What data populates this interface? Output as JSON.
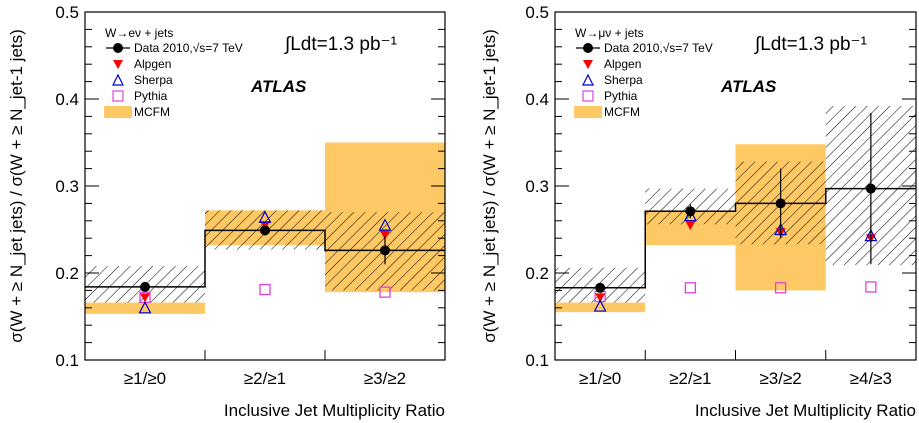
{
  "chart_data": [
    {
      "type": "bar",
      "xlabel": "Inclusive Jet Multiplicity Ratio",
      "ylabel": "σ(W + ≥ N_jet jets) / σ(W + ≥ N_jet-1 jets)",
      "ylim": [
        0.1,
        0.5
      ],
      "yticks": [
        "0.1",
        "0.2",
        "0.3",
        "0.4",
        "0.5"
      ],
      "categories": [
        "≥1/≥0",
        "≥2/≥1",
        "≥3/≥2"
      ],
      "lumi": "∫Ldt=1.3 pb⁻¹",
      "atlas": "ATLAS",
      "legend_header": "W→eν + jets",
      "legend": [
        "Data 2010,√s=7 TeV",
        "Alpgen",
        "Sherpa",
        "Pythia",
        "MCFM"
      ],
      "series": [
        {
          "name": "Data 2010,√s=7 TeV",
          "values": [
            0.184,
            0.249,
            0.226
          ],
          "err_stat": [
            0.004,
            0.006,
            0.016
          ],
          "syst_band": [
            [
              0.166,
              0.208
            ],
            [
              0.227,
              0.272
            ],
            [
              0.18,
              0.27
            ]
          ]
        },
        {
          "name": "Alpgen",
          "values": [
            0.172,
            0.255,
            0.244
          ]
        },
        {
          "name": "Sherpa",
          "values": [
            0.16,
            0.264,
            0.255
          ]
        },
        {
          "name": "Pythia",
          "values": [
            0.172,
            0.181,
            0.178
          ]
        },
        {
          "name": "MCFM",
          "bands": [
            [
              0.153,
              0.166
            ],
            [
              0.232,
              0.272
            ],
            [
              0.178,
              0.35
            ]
          ]
        }
      ],
      "colors": {
        "data": "#000000",
        "alpgen": "#ff0000",
        "sherpa": "#0000cc",
        "pythia": "#e040e0",
        "mcfm": "#fec964"
      }
    },
    {
      "type": "bar",
      "xlabel": "Inclusive Jet Multiplicity Ratio",
      "ylabel": "σ(W + ≥ N_jet jets) / σ(W + ≥ N_jet-1 jets)",
      "ylim": [
        0.1,
        0.5
      ],
      "yticks": [
        "0.1",
        "0.2",
        "0.3",
        "0.4",
        "0.5"
      ],
      "categories": [
        "≥1/≥0",
        "≥2/≥1",
        "≥3/≥2",
        "≥4/≥3"
      ],
      "lumi": "∫Ldt=1.3 pb⁻¹",
      "atlas": "ATLAS",
      "legend_header": "W→μν + jets",
      "legend": [
        "Data 2010,√s=7 TeV",
        "Alpgen",
        "Sherpa",
        "Pythia",
        "MCFM"
      ],
      "series": [
        {
          "name": "Data 2010,√s=7 TeV",
          "values": [
            0.183,
            0.271,
            0.28,
            0.297
          ],
          "err_stat": [
            0.004,
            0.008,
            0.04,
            0.087
          ],
          "syst_band": [
            [
              0.166,
              0.206
            ],
            [
              0.256,
              0.297
            ],
            [
              0.233,
              0.328
            ],
            [
              0.209,
              0.392
            ]
          ]
        },
        {
          "name": "Alpgen",
          "values": [
            0.172,
            0.255,
            0.247,
            0.24
          ]
        },
        {
          "name": "Sherpa",
          "values": [
            0.162,
            0.266,
            0.25,
            0.243
          ]
        },
        {
          "name": "Pythia",
          "values": [
            0.173,
            0.183,
            0.183,
            0.184
          ]
        },
        {
          "name": "MCFM",
          "bands": [
            [
              0.155,
              0.166
            ],
            [
              0.232,
              0.272
            ],
            [
              0.18,
              0.348
            ],
            null
          ]
        }
      ],
      "colors": {
        "data": "#000000",
        "alpgen": "#ff0000",
        "sherpa": "#0000cc",
        "pythia": "#e040e0",
        "mcfm": "#fec964"
      }
    }
  ]
}
